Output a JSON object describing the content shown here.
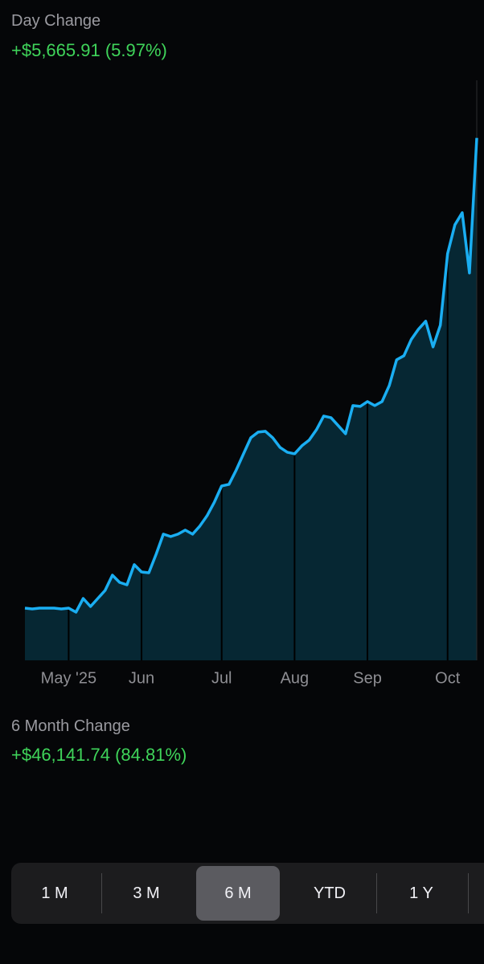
{
  "header": {
    "title": "Day Change",
    "value": "+$5,665.91 (5.97%)"
  },
  "chart_data": {
    "type": "area",
    "categories": [
      null,
      null,
      null,
      null,
      null,
      null,
      "May '25",
      null,
      null,
      null,
      null,
      null,
      null,
      null,
      null,
      null,
      "Jun",
      null,
      null,
      null,
      null,
      null,
      null,
      null,
      null,
      null,
      null,
      "Jul",
      null,
      null,
      null,
      null,
      null,
      null,
      null,
      null,
      null,
      "Aug",
      null,
      null,
      null,
      null,
      null,
      null,
      null,
      null,
      null,
      "Sep",
      null,
      null,
      null,
      null,
      null,
      null,
      null,
      null,
      null,
      null,
      "Oct",
      null,
      null,
      null,
      null
    ],
    "values": [
      54406,
      54327,
      54406,
      54406,
      54406,
      54327,
      54406,
      54011,
      55352,
      54563,
      55352,
      56141,
      57639,
      56929,
      56693,
      58665,
      57955,
      57876,
      59690,
      61662,
      61425,
      61662,
      62056,
      61662,
      62450,
      63476,
      64816,
      66394,
      66552,
      67971,
      69549,
      71126,
      71678,
      71757,
      71126,
      70180,
      69706,
      69549,
      70337,
      70889,
      71915,
      73255,
      73098,
      72309,
      71520,
      74281,
      74202,
      74675,
      74281,
      74675,
      76253,
      78776,
      79171,
      80748,
      81773,
      82562,
      80038,
      82168,
      89187,
      92027,
      93210,
      87294,
      100548
    ],
    "color": "#1aaef2",
    "fill": "#062733",
    "ylim": [
      49279,
      106200
    ]
  },
  "summary": {
    "title": "6 Month Change",
    "value": "+$46,141.74 (84.81%)"
  },
  "range_selector": {
    "options": [
      "1 M",
      "3 M",
      "6 M",
      "YTD",
      "1 Y"
    ],
    "selected": 2
  }
}
